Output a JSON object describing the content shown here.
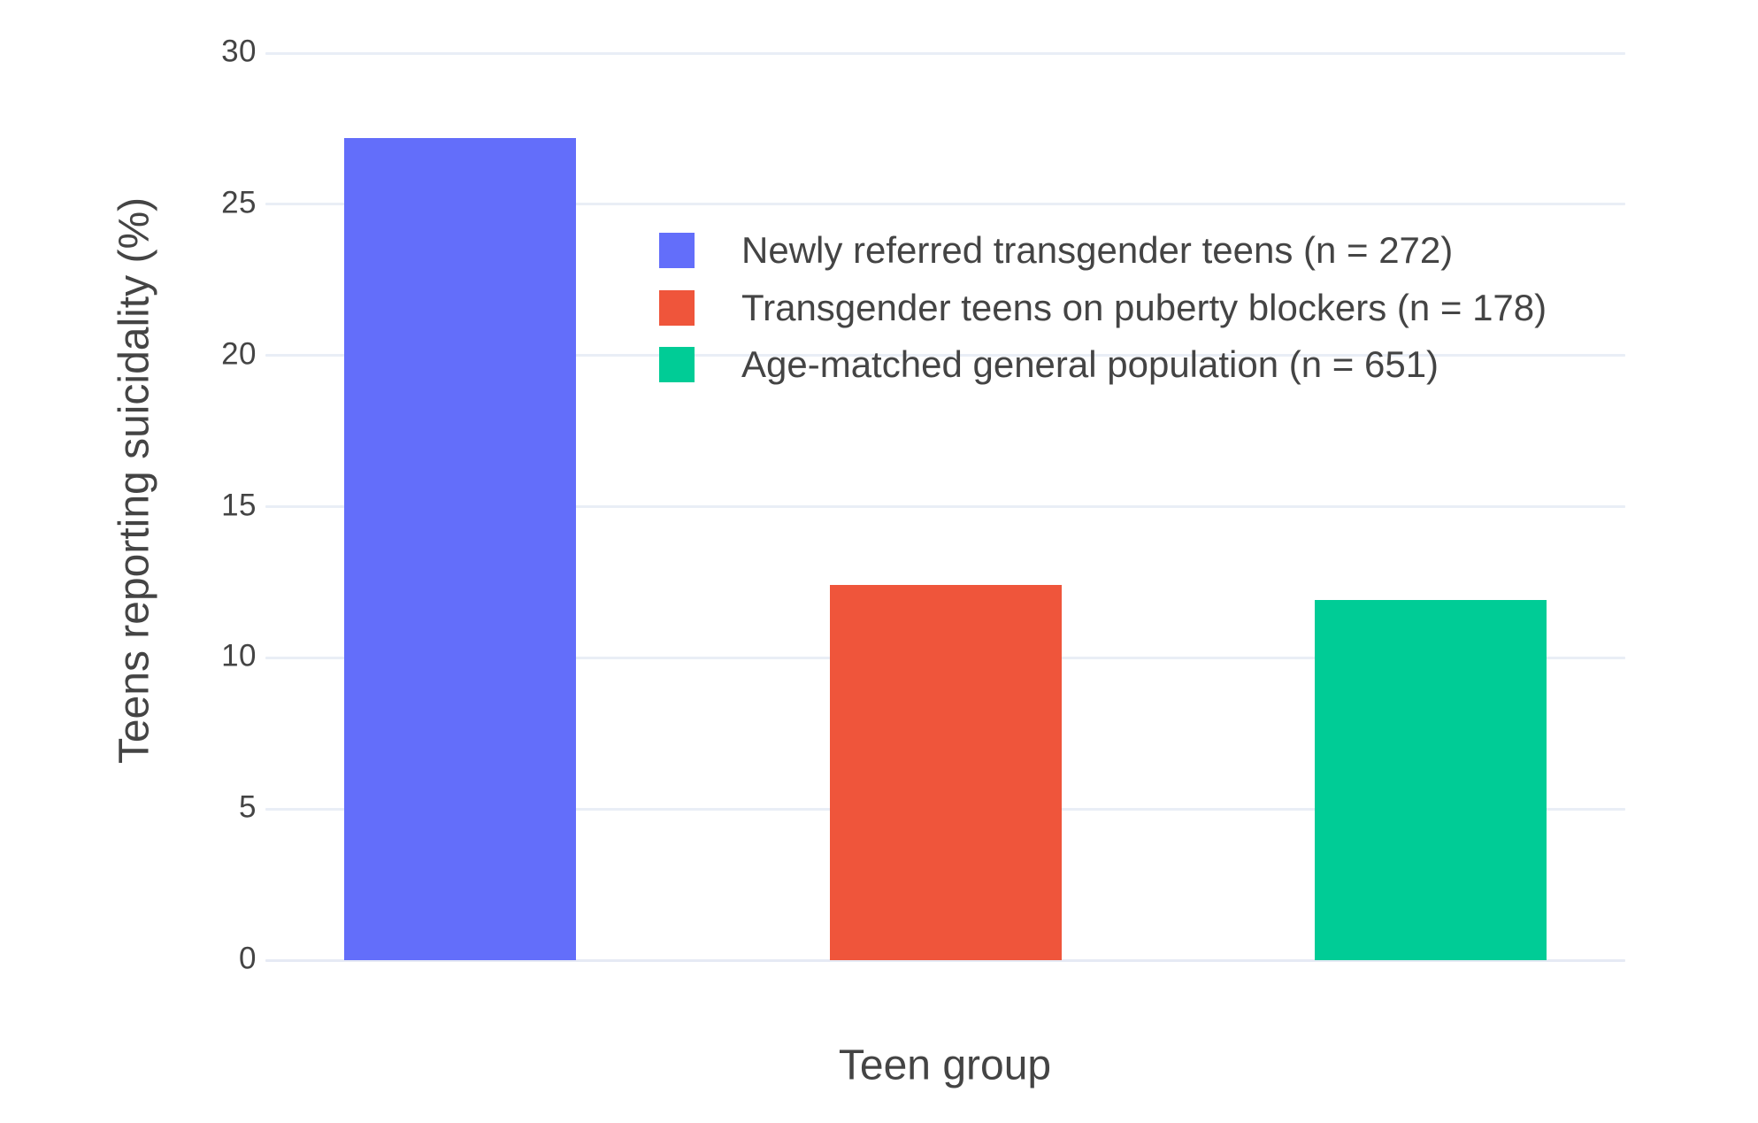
{
  "chart_data": {
    "type": "bar",
    "title": "",
    "xlabel": "Teen group",
    "ylabel": "Teens reporting suicidality (%)",
    "categories": [
      "Newly referred transgender teens (n = 272)",
      "Transgender teens on puberty blockers (n = 178)",
      "Age-matched general population (n = 651)"
    ],
    "values": [
      27.2,
      12.4,
      11.9
    ],
    "colors": [
      "#636EFA",
      "#EF553B",
      "#00CC96"
    ],
    "legend": [
      {
        "label": "Newly referred transgender teens (n = 272)",
        "color": "#636EFA"
      },
      {
        "label": "Transgender teens on puberty blockers (n = 178)",
        "color": "#EF553B"
      },
      {
        "label": "Age-matched general population (n = 651)",
        "color": "#00CC96"
      }
    ],
    "legend_position": "inside-top, left-of-center",
    "ylim": [
      0,
      30
    ],
    "yticks": [
      0,
      5,
      10,
      15,
      20,
      25,
      30
    ],
    "grid": true,
    "x_tick_labels_shown": false
  },
  "style": {
    "background": "#FFFFFF",
    "grid_color": "#E9EEF6",
    "zero_line_color": "#E6EAF4",
    "text_color": "#444444"
  }
}
